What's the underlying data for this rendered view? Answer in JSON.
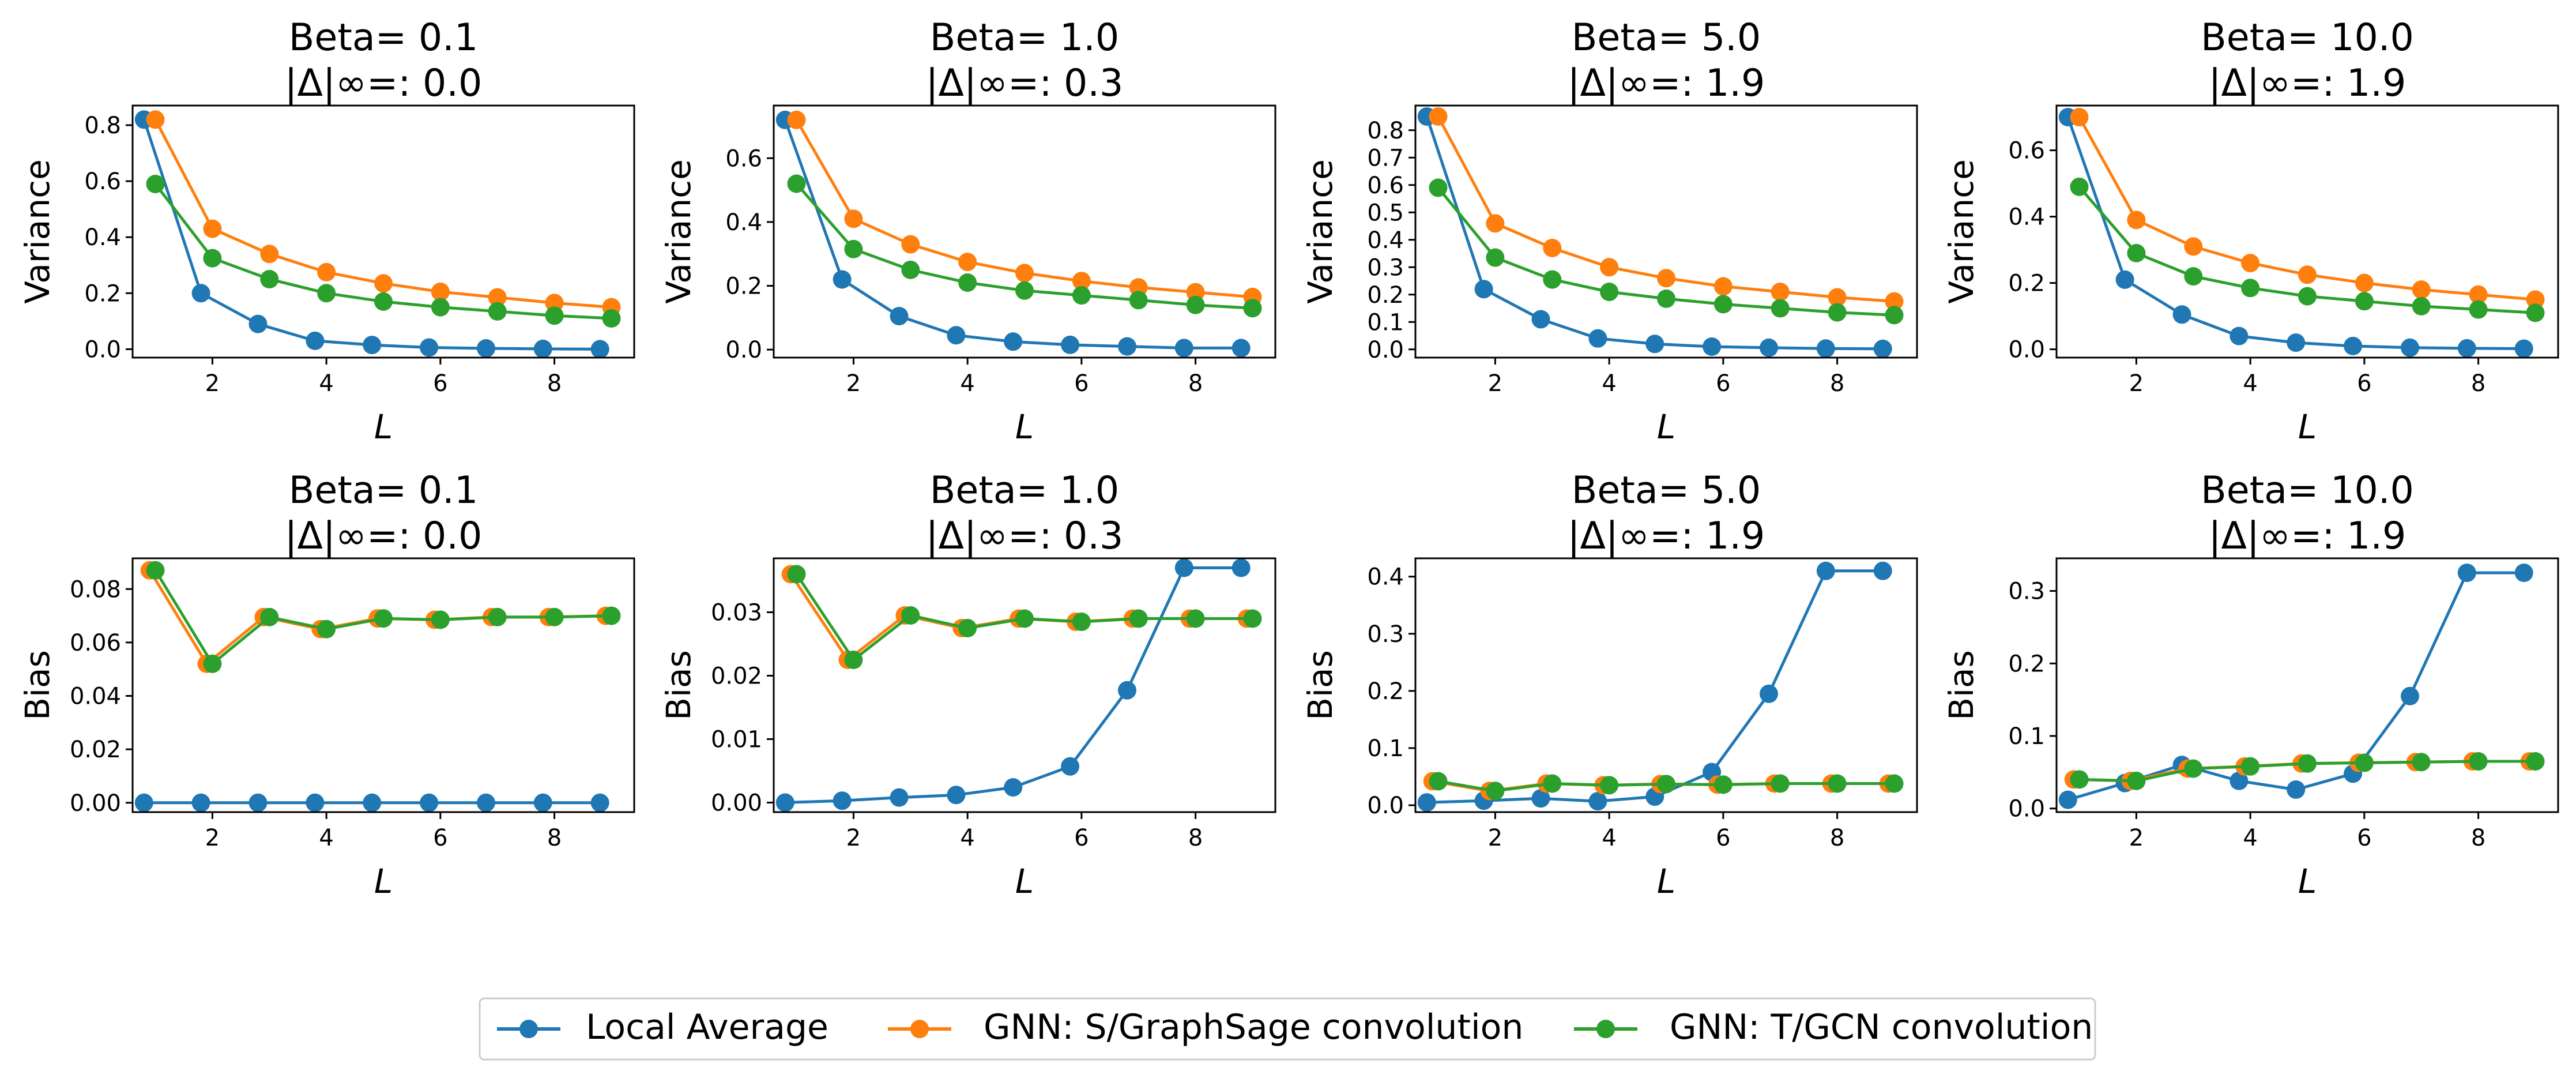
{
  "figure": {
    "legend": [
      {
        "label": "Local Average",
        "color": "#1f77b4"
      },
      {
        "label": "GNN: S/GraphSage convolution",
        "color": "#ff7f0e"
      },
      {
        "label": "GNN: T/GCN convolution",
        "color": "#2ca02c"
      }
    ]
  },
  "chart_data": [
    {
      "type": "line",
      "row": "variance",
      "title_line1": "Beta= 0.1",
      "title_line2": "|Δ|∞=: 0.0",
      "xlabel": "L",
      "ylabel": "Variance",
      "xlim": [
        0.6,
        9.4
      ],
      "xticks": [
        2,
        4,
        6,
        8
      ],
      "ylim": [
        -0.03,
        0.87
      ],
      "yticks": [
        0.0,
        0.2,
        0.4,
        0.6,
        0.8
      ],
      "ytick_labels": [
        "0.0",
        "0.2",
        "0.4",
        "0.6",
        "0.8"
      ],
      "series": [
        {
          "name": "Local Average",
          "x": [
            0.8,
            1.8,
            2.8,
            3.8,
            4.8,
            5.8,
            6.8,
            7.8,
            8.8
          ],
          "y": [
            0.82,
            0.2,
            0.09,
            0.03,
            0.015,
            0.006,
            0.003,
            0.001,
            0.0
          ]
        },
        {
          "name": "GNN: S/GraphSage convolution",
          "x": [
            1,
            2,
            3,
            4,
            5,
            6,
            7,
            8,
            9
          ],
          "y": [
            0.82,
            0.43,
            0.34,
            0.275,
            0.235,
            0.205,
            0.185,
            0.165,
            0.15
          ]
        },
        {
          "name": "GNN: T/GCN convolution",
          "x": [
            1,
            2,
            3,
            4,
            5,
            6,
            7,
            8,
            9
          ],
          "y": [
            0.59,
            0.325,
            0.25,
            0.2,
            0.17,
            0.15,
            0.135,
            0.12,
            0.11
          ]
        }
      ]
    },
    {
      "type": "line",
      "row": "variance",
      "title_line1": "Beta= 1.0",
      "title_line2": "|Δ|∞=: 0.3",
      "xlabel": "L",
      "ylabel": "Variance",
      "xlim": [
        0.6,
        9.4
      ],
      "xticks": [
        2,
        4,
        6,
        8
      ],
      "ylim": [
        -0.025,
        0.765
      ],
      "yticks": [
        0.0,
        0.2,
        0.4,
        0.6
      ],
      "ytick_labels": [
        "0.0",
        "0.2",
        "0.4",
        "0.6"
      ],
      "series": [
        {
          "name": "Local Average",
          "x": [
            0.8,
            1.8,
            2.8,
            3.8,
            4.8,
            5.8,
            6.8,
            7.8,
            8.8
          ],
          "y": [
            0.72,
            0.22,
            0.105,
            0.045,
            0.025,
            0.015,
            0.01,
            0.005,
            0.005
          ]
        },
        {
          "name": "GNN: S/GraphSage convolution",
          "x": [
            1,
            2,
            3,
            4,
            5,
            6,
            7,
            8,
            9
          ],
          "y": [
            0.72,
            0.41,
            0.33,
            0.275,
            0.24,
            0.215,
            0.195,
            0.18,
            0.165
          ]
        },
        {
          "name": "GNN: T/GCN convolution",
          "x": [
            1,
            2,
            3,
            4,
            5,
            6,
            7,
            8,
            9
          ],
          "y": [
            0.52,
            0.315,
            0.25,
            0.21,
            0.185,
            0.17,
            0.155,
            0.14,
            0.13
          ]
        }
      ]
    },
    {
      "type": "line",
      "row": "variance",
      "title_line1": "Beta= 5.0",
      "title_line2": "|Δ|∞=: 1.9",
      "xlabel": "L",
      "ylabel": "Variance",
      "xlim": [
        0.6,
        9.4
      ],
      "xticks": [
        2,
        4,
        6,
        8
      ],
      "ylim": [
        -0.03,
        0.89
      ],
      "yticks": [
        0.0,
        0.1,
        0.2,
        0.3,
        0.4,
        0.5,
        0.6,
        0.7,
        0.8
      ],
      "ytick_labels": [
        "0.0",
        "0.1",
        "0.2",
        "0.3",
        "0.4",
        "0.5",
        "0.6",
        "0.7",
        "0.8"
      ],
      "series": [
        {
          "name": "Local Average",
          "x": [
            0.8,
            1.8,
            2.8,
            3.8,
            4.8,
            5.8,
            6.8,
            7.8,
            8.8
          ],
          "y": [
            0.85,
            0.22,
            0.11,
            0.04,
            0.02,
            0.01,
            0.006,
            0.003,
            0.002
          ]
        },
        {
          "name": "GNN: S/GraphSage convolution",
          "x": [
            1,
            2,
            3,
            4,
            5,
            6,
            7,
            8,
            9
          ],
          "y": [
            0.85,
            0.46,
            0.37,
            0.3,
            0.26,
            0.23,
            0.21,
            0.19,
            0.175
          ]
        },
        {
          "name": "GNN: T/GCN convolution",
          "x": [
            1,
            2,
            3,
            4,
            5,
            6,
            7,
            8,
            9
          ],
          "y": [
            0.59,
            0.335,
            0.255,
            0.21,
            0.185,
            0.165,
            0.15,
            0.135,
            0.125
          ]
        }
      ]
    },
    {
      "type": "line",
      "row": "variance",
      "title_line1": "Beta= 10.0",
      "title_line2": "|Δ|∞=: 1.9",
      "xlabel": "L",
      "ylabel": "Variance",
      "xlim": [
        0.6,
        9.4
      ],
      "xticks": [
        2,
        4,
        6,
        8
      ],
      "ylim": [
        -0.025,
        0.735
      ],
      "yticks": [
        0.0,
        0.2,
        0.4,
        0.6
      ],
      "ytick_labels": [
        "0.0",
        "0.2",
        "0.4",
        "0.6"
      ],
      "series": [
        {
          "name": "Local Average",
          "x": [
            0.8,
            1.8,
            2.8,
            3.8,
            4.8,
            5.8,
            6.8,
            7.8,
            8.8
          ],
          "y": [
            0.7,
            0.21,
            0.105,
            0.04,
            0.02,
            0.01,
            0.005,
            0.003,
            0.002
          ]
        },
        {
          "name": "GNN: S/GraphSage convolution",
          "x": [
            1,
            2,
            3,
            4,
            5,
            6,
            7,
            8,
            9
          ],
          "y": [
            0.7,
            0.39,
            0.31,
            0.26,
            0.225,
            0.2,
            0.18,
            0.165,
            0.15
          ]
        },
        {
          "name": "GNN: T/GCN convolution",
          "x": [
            1,
            2,
            3,
            4,
            5,
            6,
            7,
            8,
            9
          ],
          "y": [
            0.49,
            0.29,
            0.22,
            0.185,
            0.16,
            0.145,
            0.13,
            0.12,
            0.11
          ]
        }
      ]
    },
    {
      "type": "line",
      "row": "bias",
      "title_line1": "Beta= 0.1",
      "title_line2": "|Δ|∞=: 0.0",
      "xlabel": "L",
      "ylabel": "Bias",
      "xlim": [
        0.6,
        9.4
      ],
      "xticks": [
        2,
        4,
        6,
        8
      ],
      "ylim": [
        -0.0035,
        0.0915
      ],
      "yticks": [
        0.0,
        0.02,
        0.04,
        0.06,
        0.08
      ],
      "ytick_labels": [
        "0.00",
        "0.02",
        "0.04",
        "0.06",
        "0.08"
      ],
      "series": [
        {
          "name": "Local Average",
          "x": [
            0.8,
            1.8,
            2.8,
            3.8,
            4.8,
            5.8,
            6.8,
            7.8,
            8.8
          ],
          "y": [
            0,
            0,
            0,
            0,
            0,
            0,
            0,
            0,
            0
          ]
        },
        {
          "name": "GNN: S/GraphSage convolution",
          "x": [
            0.9,
            1.9,
            2.9,
            3.9,
            4.9,
            5.9,
            6.9,
            7.9,
            8.9
          ],
          "y": [
            0.087,
            0.052,
            0.0695,
            0.065,
            0.069,
            0.0685,
            0.0695,
            0.0695,
            0.07
          ]
        },
        {
          "name": "GNN: T/GCN convolution",
          "x": [
            1,
            2,
            3,
            4,
            5,
            6,
            7,
            8,
            9
          ],
          "y": [
            0.087,
            0.052,
            0.0695,
            0.065,
            0.069,
            0.0685,
            0.0695,
            0.0695,
            0.07
          ]
        }
      ]
    },
    {
      "type": "line",
      "row": "bias",
      "title_line1": "Beta= 1.0",
      "title_line2": "|Δ|∞=: 0.3",
      "xlabel": "L",
      "ylabel": "Bias",
      "xlim": [
        0.6,
        9.4
      ],
      "xticks": [
        2,
        4,
        6,
        8
      ],
      "ylim": [
        -0.0015,
        0.0385
      ],
      "yticks": [
        0.0,
        0.01,
        0.02,
        0.03
      ],
      "ytick_labels": [
        "0.00",
        "0.01",
        "0.02",
        "0.03"
      ],
      "series": [
        {
          "name": "Local Average",
          "x": [
            0.8,
            1.8,
            2.8,
            3.8,
            4.8,
            5.8,
            6.8,
            7.8,
            8.8
          ],
          "y": [
            0.0,
            0.0003,
            0.0008,
            0.0012,
            0.0024,
            0.0057,
            0.0177,
            0.037,
            0.037
          ]
        },
        {
          "name": "GNN: S/GraphSage convolution",
          "x": [
            0.9,
            1.9,
            2.9,
            3.9,
            4.9,
            5.9,
            6.9,
            7.9,
            8.9
          ],
          "y": [
            0.036,
            0.0225,
            0.0295,
            0.0275,
            0.029,
            0.0285,
            0.029,
            0.029,
            0.029
          ]
        },
        {
          "name": "GNN: T/GCN convolution",
          "x": [
            1,
            2,
            3,
            4,
            5,
            6,
            7,
            8,
            9
          ],
          "y": [
            0.036,
            0.0225,
            0.0295,
            0.0275,
            0.029,
            0.0285,
            0.029,
            0.029,
            0.029
          ]
        }
      ]
    },
    {
      "type": "line",
      "row": "bias",
      "title_line1": "Beta= 5.0",
      "title_line2": "|Δ|∞=: 1.9",
      "xlabel": "L",
      "ylabel": "Bias",
      "xlim": [
        0.6,
        9.4
      ],
      "xticks": [
        2,
        4,
        6,
        8
      ],
      "ylim": [
        -0.012,
        0.432
      ],
      "yticks": [
        0.0,
        0.1,
        0.2,
        0.3,
        0.4
      ],
      "ytick_labels": [
        "0.0",
        "0.1",
        "0.2",
        "0.3",
        "0.4"
      ],
      "series": [
        {
          "name": "Local Average",
          "x": [
            0.8,
            1.8,
            2.8,
            3.8,
            4.8,
            5.8,
            6.8,
            7.8,
            8.8
          ],
          "y": [
            0.005,
            0.008,
            0.012,
            0.007,
            0.015,
            0.058,
            0.195,
            0.41,
            0.41
          ]
        },
        {
          "name": "GNN: S/GraphSage convolution",
          "x": [
            0.9,
            1.9,
            2.9,
            3.9,
            4.9,
            5.9,
            6.9,
            7.9,
            8.9
          ],
          "y": [
            0.042,
            0.025,
            0.038,
            0.035,
            0.037,
            0.036,
            0.038,
            0.038,
            0.038
          ]
        },
        {
          "name": "GNN: T/GCN convolution",
          "x": [
            1,
            2,
            3,
            4,
            5,
            6,
            7,
            8,
            9
          ],
          "y": [
            0.042,
            0.025,
            0.038,
            0.035,
            0.037,
            0.036,
            0.038,
            0.038,
            0.038
          ]
        }
      ]
    },
    {
      "type": "line",
      "row": "bias",
      "title_line1": "Beta= 10.0",
      "title_line2": "|Δ|∞=: 1.9",
      "xlabel": "L",
      "ylabel": "Bias",
      "xlim": [
        0.6,
        9.4
      ],
      "xticks": [
        2,
        4,
        6,
        8
      ],
      "ylim": [
        -0.005,
        0.345
      ],
      "yticks": [
        0.0,
        0.1,
        0.2,
        0.3
      ],
      "ytick_labels": [
        "0.0",
        "0.1",
        "0.2",
        "0.3"
      ],
      "series": [
        {
          "name": "Local Average",
          "x": [
            0.8,
            1.8,
            2.8,
            3.8,
            4.8,
            5.8,
            6.8,
            7.8,
            8.8
          ],
          "y": [
            0.012,
            0.035,
            0.06,
            0.038,
            0.026,
            0.048,
            0.155,
            0.325,
            0.325
          ]
        },
        {
          "name": "GNN: S/GraphSage convolution",
          "x": [
            0.9,
            1.9,
            2.9,
            3.9,
            4.9,
            5.9,
            6.9,
            7.9,
            8.9
          ],
          "y": [
            0.04,
            0.038,
            0.055,
            0.058,
            0.062,
            0.063,
            0.064,
            0.065,
            0.065
          ]
        },
        {
          "name": "GNN: T/GCN convolution",
          "x": [
            1,
            2,
            3,
            4,
            5,
            6,
            7,
            8,
            9
          ],
          "y": [
            0.04,
            0.038,
            0.055,
            0.058,
            0.062,
            0.063,
            0.064,
            0.065,
            0.065
          ]
        }
      ]
    }
  ]
}
